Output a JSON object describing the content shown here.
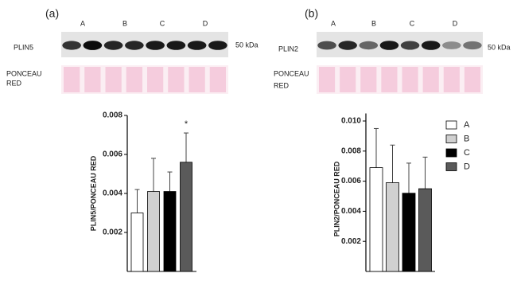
{
  "blots": [
    {
      "label": "(a)",
      "lanes": [
        "A",
        "B",
        "C",
        "D"
      ],
      "protein": "PLIN5",
      "marker": "50 kDa",
      "stain": [
        "PONCEAU",
        "RED"
      ]
    },
    {
      "label": "(b)",
      "lanes": [
        "A",
        "B",
        "C",
        "D"
      ],
      "protein": "PLIN2",
      "marker": "50 kDa",
      "stain": [
        "PONCEAU",
        "RED"
      ]
    }
  ],
  "chart_data": [
    {
      "type": "bar",
      "ylabel": "PLIN5/PONCEAU RED",
      "values": [
        0.003,
        0.0041,
        0.0041,
        0.0056
      ],
      "errors": [
        0.0012,
        0.0017,
        0.001,
        0.0015
      ],
      "colors": [
        "#ffffff",
        "#d0d0d0",
        "#000000",
        "#5a5a5a"
      ],
      "annotation": "*",
      "ylim": [
        0,
        0.008
      ],
      "yticks": [
        0.002,
        0.004,
        0.006,
        0.008
      ]
    },
    {
      "type": "bar",
      "ylabel": "PLIN2/PONCEAU RED",
      "categories": [
        "A",
        "B",
        "C",
        "D"
      ],
      "values": [
        0.0069,
        0.0059,
        0.0052,
        0.0055
      ],
      "errors": [
        0.0026,
        0.0025,
        0.002,
        0.0021
      ],
      "colors": [
        "#ffffff",
        "#d0d0d0",
        "#000000",
        "#5a5a5a"
      ],
      "legend": "upper right",
      "ylim": [
        0,
        0.0105
      ],
      "yticks": [
        0.002,
        0.004,
        0.006,
        0.008,
        {
          "value": 0.01,
          "label": "0.010"
        }
      ]
    }
  ]
}
